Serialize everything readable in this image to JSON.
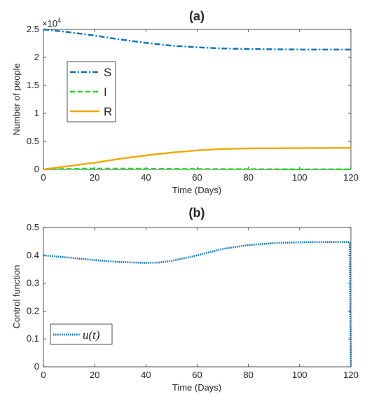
{
  "chart_data": [
    {
      "type": "line",
      "title": "(a)",
      "xlabel": "Time (Days)",
      "ylabel": "Number of people",
      "xlim": [
        0,
        120
      ],
      "ylim": [
        0,
        2.5
      ],
      "y_exponent": "×10",
      "y_exponent_power": "4",
      "xticks": [
        "0",
        "20",
        "40",
        "60",
        "80",
        "100",
        "120"
      ],
      "yticks": [
        "0",
        "0.5",
        "1",
        "1.5",
        "2",
        "2.5"
      ],
      "grid": false,
      "legend_position": "center-left",
      "x": [
        0,
        10,
        20,
        30,
        40,
        50,
        60,
        70,
        80,
        90,
        100,
        110,
        120
      ],
      "series": [
        {
          "name": "S",
          "color": "#0072bd",
          "style": "dash-dot",
          "values": [
            2.5,
            2.45,
            2.39,
            2.32,
            2.26,
            2.21,
            2.18,
            2.16,
            2.15,
            2.145,
            2.14,
            2.14,
            2.14
          ]
        },
        {
          "name": "I",
          "color": "#22dd22",
          "style": "dashed",
          "values": [
            0,
            0.01,
            0.015,
            0.015,
            0.012,
            0.01,
            0.008,
            0.006,
            0.005,
            0.004,
            0.003,
            0.003,
            0.003
          ]
        },
        {
          "name": "R",
          "color": "#f0a800",
          "style": "solid",
          "values": [
            0,
            0.06,
            0.12,
            0.19,
            0.25,
            0.3,
            0.34,
            0.365,
            0.375,
            0.378,
            0.38,
            0.382,
            0.385
          ]
        }
      ]
    },
    {
      "type": "line",
      "title": "(b)",
      "xlabel": "Time (Days)",
      "ylabel": "Control function",
      "xlim": [
        0,
        120
      ],
      "ylim": [
        0,
        0.5
      ],
      "xticks": [
        "0",
        "20",
        "40",
        "60",
        "80",
        "100",
        "120"
      ],
      "yticks": [
        "0",
        "0.1",
        "0.2",
        "0.3",
        "0.4",
        "0.5"
      ],
      "grid": false,
      "legend_position": "bottom-left",
      "series": [
        {
          "name": "u(t)",
          "color": "#0072bd",
          "style": "dotted",
          "x": [
            0,
            10,
            20,
            30,
            40,
            45,
            50,
            60,
            70,
            80,
            90,
            100,
            110,
            119.5,
            120
          ],
          "values": [
            0.4,
            0.392,
            0.383,
            0.376,
            0.373,
            0.374,
            0.38,
            0.4,
            0.423,
            0.437,
            0.444,
            0.447,
            0.448,
            0.448,
            0
          ]
        }
      ]
    }
  ]
}
